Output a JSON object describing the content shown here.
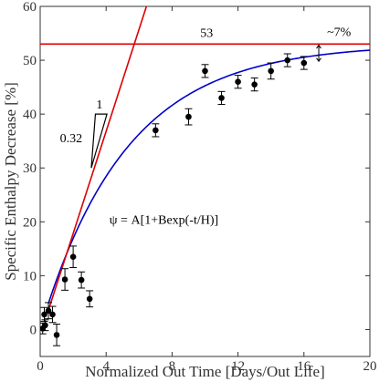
{
  "chart_data": {
    "type": "scatter",
    "xlabel": "Normalized Out Time [Days/Out Life]",
    "ylabel": "Specific Enthalpy Decrease [%]",
    "xlim": [
      0,
      20
    ],
    "ylim": [
      -5,
      60
    ],
    "xticks": [
      0,
      4,
      8,
      12,
      16,
      20
    ],
    "yticks": [
      0,
      10,
      20,
      30,
      40,
      50,
      60
    ],
    "grid": false,
    "legend": "none",
    "series": [
      {
        "type": "scatter-errorbar",
        "color": "#000000",
        "points": [
          {
            "x": 0.15,
            "y": 0.2,
            "err": 1.0
          },
          {
            "x": 0.25,
            "y": 2.8,
            "err": 1.3
          },
          {
            "x": 0.3,
            "y": 0.8,
            "err": 1.0
          },
          {
            "x": 0.5,
            "y": 3.5,
            "err": 1.5
          },
          {
            "x": 0.75,
            "y": 2.8,
            "err": 1.5
          },
          {
            "x": 1.0,
            "y": -1.0,
            "err": 2.0
          },
          {
            "x": 1.5,
            "y": 9.3,
            "err": 2.0
          },
          {
            "x": 2.0,
            "y": 13.5,
            "err": 2.0
          },
          {
            "x": 2.5,
            "y": 9.2,
            "err": 1.5
          },
          {
            "x": 3.0,
            "y": 5.7,
            "err": 1.5
          },
          {
            "x": 7.0,
            "y": 37.0,
            "err": 1.2
          },
          {
            "x": 9.0,
            "y": 39.5,
            "err": 1.5
          },
          {
            "x": 10.0,
            "y": 48.0,
            "err": 1.2
          },
          {
            "x": 11.0,
            "y": 43.0,
            "err": 1.2
          },
          {
            "x": 12.0,
            "y": 46.0,
            "err": 1.2
          },
          {
            "x": 13.0,
            "y": 45.5,
            "err": 1.2
          },
          {
            "x": 14.0,
            "y": 48.0,
            "err": 1.5
          },
          {
            "x": 15.0,
            "y": 50.0,
            "err": 1.2
          },
          {
            "x": 16.0,
            "y": 49.5,
            "err": 1.2
          }
        ]
      },
      {
        "type": "fit-curve",
        "color": "#0000cc",
        "A": 53,
        "B": -1,
        "H": 5.2,
        "x0": 0.5,
        "x1": 20
      },
      {
        "type": "tangent-line",
        "color": "#dd0000",
        "points": [
          [
            0.5,
            3.6
          ],
          [
            7.5,
            70
          ]
        ]
      },
      {
        "type": "asymptote",
        "color": "#dd0000",
        "y": 53
      }
    ],
    "annotations": {
      "asymptote_label": "53",
      "gap_label": "~7%",
      "formula": "ψ = A[1+Bexp(-t/H)]",
      "slope_run": "1",
      "slope_rise": "0.32"
    }
  }
}
